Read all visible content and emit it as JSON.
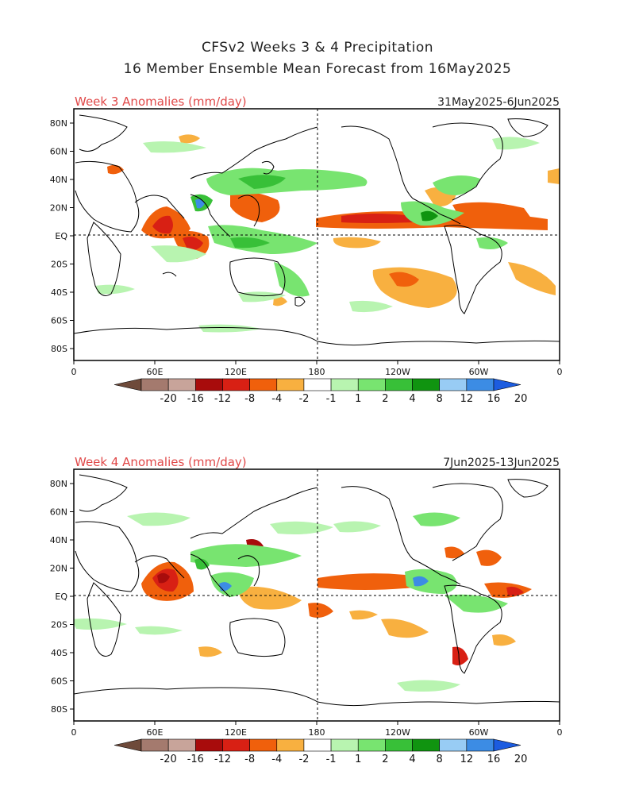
{
  "title": {
    "line1": "CFSv2 Weeks 3 & 4 Precipitation",
    "line2": "16 Member Ensemble Mean Forecast from 16May2025"
  },
  "panels": [
    {
      "heading": "Week 3 Anomalies (mm/day)",
      "dates": "31May2025-6Jun2025"
    },
    {
      "heading": "Week 4 Anomalies (mm/day)",
      "dates": "7Jun2025-13Jun2025"
    }
  ],
  "lat_ticks": [
    "80N",
    "60N",
    "40N",
    "20N",
    "EQ",
    "20S",
    "40S",
    "60S",
    "80S"
  ],
  "lon_ticks": [
    "0",
    "60E",
    "120E",
    "180",
    "120W",
    "60W",
    "0"
  ],
  "colorbar": {
    "tick_labels": [
      "-20",
      "-16",
      "-12",
      "-8",
      "-4",
      "-2",
      "-1",
      "1",
      "2",
      "4",
      "8",
      "12",
      "16",
      "20"
    ],
    "colors": [
      "#6e4a3a",
      "#a47a6e",
      "#c8a49a",
      "#a80c0c",
      "#d82014",
      "#f0600c",
      "#f8b040",
      "#ffffff",
      "#b8f4b0",
      "#78e470",
      "#38c038",
      "#109410",
      "#98ccf4",
      "#3c8ce4",
      "#1c5ce0"
    ]
  }
}
